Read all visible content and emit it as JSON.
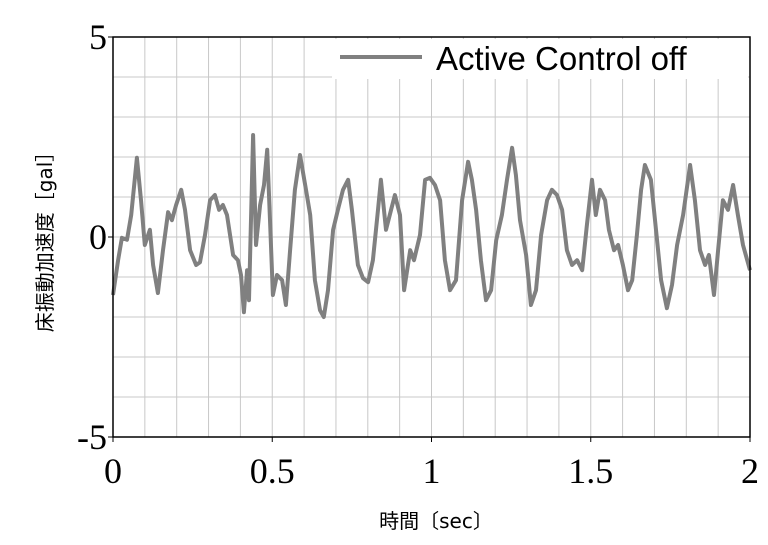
{
  "chart_data": {
    "type": "line",
    "xlabel": "時間〔sec〕",
    "ylabel": "床振動加速度［gal］",
    "x": [
      0,
      0.016,
      0.028,
      0.044,
      0.057,
      0.075,
      0.088,
      0.1,
      0.116,
      0.126,
      0.141,
      0.157,
      0.173,
      0.185,
      0.198,
      0.214,
      0.226,
      0.242,
      0.261,
      0.273,
      0.289,
      0.305,
      0.32,
      0.333,
      0.345,
      0.358,
      0.377,
      0.392,
      0.402,
      0.411,
      0.421,
      0.427,
      0.44,
      0.449,
      0.462,
      0.474,
      0.484,
      0.493,
      0.502,
      0.515,
      0.531,
      0.543,
      0.556,
      0.571,
      0.587,
      0.606,
      0.619,
      0.634,
      0.65,
      0.662,
      0.675,
      0.691,
      0.706,
      0.722,
      0.738,
      0.75,
      0.769,
      0.785,
      0.801,
      0.816,
      0.832,
      0.841,
      0.857,
      0.873,
      0.885,
      0.901,
      0.914,
      0.933,
      0.945,
      0.964,
      0.98,
      0.995,
      1.011,
      1.027,
      1.042,
      1.058,
      1.077,
      1.096,
      1.115,
      1.127,
      1.14,
      1.155,
      1.171,
      1.187,
      1.203,
      1.221,
      1.237,
      1.253,
      1.265,
      1.278,
      1.297,
      1.312,
      1.328,
      1.344,
      1.363,
      1.378,
      1.394,
      1.41,
      1.425,
      1.441,
      1.457,
      1.473,
      1.488,
      1.504,
      1.516,
      1.529,
      1.545,
      1.557,
      1.573,
      1.586,
      1.601,
      1.617,
      1.63,
      1.645,
      1.658,
      1.67,
      1.689,
      1.705,
      1.721,
      1.739,
      1.755,
      1.771,
      1.79,
      1.812,
      1.827,
      1.843,
      1.859,
      1.871,
      1.887,
      1.9,
      1.915,
      1.931,
      1.947,
      1.962,
      1.978,
      2.0
    ],
    "series": [
      {
        "name": "Active Control off",
        "color": "#808080",
        "values": [
          -1.45,
          -0.58,
          -0.02,
          -0.07,
          0.55,
          1.98,
          0.92,
          -0.2,
          0.18,
          -0.7,
          -1.4,
          -0.33,
          0.62,
          0.42,
          0.8,
          1.18,
          0.68,
          -0.33,
          -0.7,
          -0.63,
          0.05,
          0.92,
          1.05,
          0.68,
          0.8,
          0.55,
          -0.45,
          -0.58,
          -0.95,
          -1.88,
          -0.83,
          -1.58,
          2.55,
          -0.2,
          0.8,
          1.3,
          2.18,
          0.42,
          -1.45,
          -0.95,
          -1.08,
          -1.7,
          -0.33,
          1.18,
          2.05,
          1.18,
          0.55,
          -1.08,
          -1.83,
          -2.0,
          -1.33,
          0.18,
          0.68,
          1.18,
          1.43,
          0.68,
          -0.7,
          -1.03,
          -1.13,
          -0.58,
          0.68,
          1.43,
          0.18,
          0.68,
          1.05,
          0.55,
          -1.33,
          -0.33,
          -0.58,
          0.05,
          1.43,
          1.48,
          1.3,
          0.92,
          -0.58,
          -1.33,
          -1.08,
          0.92,
          1.88,
          1.43,
          0.68,
          -0.58,
          -1.58,
          -1.33,
          -0.08,
          0.55,
          1.43,
          2.23,
          1.55,
          0.42,
          -0.45,
          -1.7,
          -1.33,
          0.05,
          0.92,
          1.18,
          1.05,
          0.68,
          -0.33,
          -0.7,
          -0.58,
          -0.83,
          0.3,
          1.43,
          0.55,
          1.18,
          0.92,
          0.18,
          -0.33,
          -0.2,
          -0.7,
          -1.33,
          -1.08,
          0.05,
          1.18,
          1.8,
          1.43,
          0.18,
          -1.08,
          -1.78,
          -1.2,
          -0.2,
          0.55,
          1.8,
          0.92,
          -0.33,
          -0.7,
          -0.45,
          -1.45,
          -0.33,
          0.92,
          0.68,
          1.3,
          0.55,
          -0.2,
          -0.83
        ]
      }
    ],
    "xlim": [
      0,
      2
    ],
    "xticks": [
      0,
      0.5,
      1,
      1.5,
      2
    ],
    "ylim": [
      -5,
      5
    ],
    "yticks": [
      -5,
      0,
      5
    ],
    "xgrid": [
      0.1,
      0.2,
      0.3,
      0.4,
      0.5,
      0.6,
      0.7,
      0.8,
      0.9,
      1,
      1.1,
      1.2,
      1.3,
      1.4,
      1.5,
      1.6,
      1.7,
      1.8,
      1.9
    ],
    "ygrid": [
      -4,
      -3,
      -2,
      -1,
      0,
      1,
      2,
      3,
      4
    ],
    "legend": "upper right"
  }
}
